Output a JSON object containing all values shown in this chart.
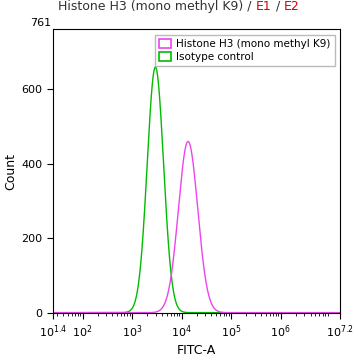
{
  "xlabel": "FITC-A",
  "ylabel": "Count",
  "ylim": [
    0,
    761
  ],
  "xlog_min": 1.4,
  "xlog_max": 7.2,
  "yticks": [
    0,
    200,
    400,
    600
  ],
  "green_peak_log": 3.47,
  "green_sigma": 0.165,
  "green_height": 660,
  "magenta_peak_log": 4.13,
  "magenta_sigma": 0.195,
  "magenta_height": 460,
  "green_color": "#00bb00",
  "magenta_color": "#ee44ee",
  "legend_label1": "Histone H3 (mono methyl K9)",
  "legend_label2": "Isotype control",
  "title_parts": [
    "Histone H3 (mono methyl K9) / ",
    "E1",
    " / ",
    "E2"
  ],
  "title_colors": [
    "#333333",
    "#dd0000",
    "#333333",
    "#dd0000"
  ],
  "bg_color": "#ffffff",
  "figsize": [
    3.58,
    3.61
  ],
  "dpi": 100
}
